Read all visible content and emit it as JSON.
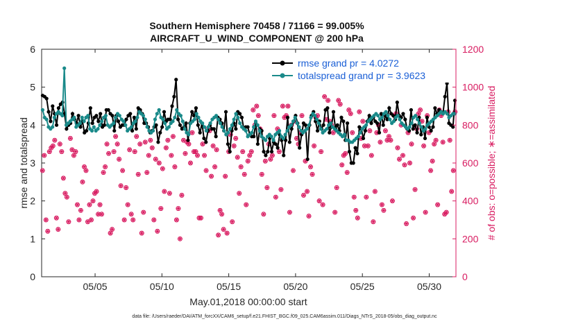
{
  "chart_data": {
    "type": "line",
    "title_line1": "Southern Hemisphere 70458 / 71166 = 99.005%",
    "title_line2": "AIRCRAFT_U_WIND_COMPONENT @ 200 hPa",
    "xlabel": "May.01,2018 00:00:00 start",
    "ylabel": "rmse and totalspread",
    "y2label": "# of obs: o=possible; ∗=assimilated",
    "footnote": "data file: /Users/raeder/DAI/ATM_forcXX/CAM6_setup/f.e21.FHIST_BGC.f09_025.CAM6assim.011/Diags_NTrS_2018-05/obs_diag_output.nc",
    "legend": [
      "rmse grand pr = 4.0272",
      "totalspread grand pr = 3.9623"
    ],
    "x_range": [
      1,
      32
    ],
    "ylim": [
      0,
      6
    ],
    "y2lim": [
      0,
      1200
    ],
    "yticks": [
      0,
      1,
      2,
      3,
      4,
      5,
      6
    ],
    "y2ticks": [
      0,
      200,
      400,
      600,
      800,
      1000,
      1200
    ],
    "xticks": [
      {
        "x": 5,
        "label": "05/05"
      },
      {
        "x": 10,
        "label": "05/10"
      },
      {
        "x": 15,
        "label": "05/15"
      },
      {
        "x": 20,
        "label": "05/20"
      },
      {
        "x": 25,
        "label": "05/25"
      },
      {
        "x": 30,
        "label": "05/30"
      }
    ],
    "series": [
      {
        "name": "rmse",
        "color": "#000000",
        "values": [
          4.78,
          4.75,
          4.7,
          4.35,
          4.1,
          4.5,
          4.3,
          4.0,
          4.45,
          4.55,
          4.6,
          4.3,
          3.9,
          4.0,
          4.05,
          4.3,
          4.15,
          4.05,
          4.25,
          3.95,
          4.1,
          3.8,
          3.85,
          4.05,
          4.45,
          4.05,
          4.2,
          4.25,
          4.1,
          4.3,
          3.95,
          4.0,
          4.4,
          4.4,
          4.3,
          4.25,
          3.85,
          4.25,
          4.1,
          3.95,
          4.0,
          4.0,
          4.15,
          4.25,
          4.3,
          3.85,
          4.2,
          3.9,
          4.45,
          4.4,
          4.3,
          4.05,
          4.05,
          3.95,
          3.8,
          3.85,
          3.95,
          4.0,
          3.55,
          3.8,
          3.95,
          4.35,
          4.1,
          4.15,
          4.15,
          4.5,
          4.75,
          5.2,
          4.15,
          4.0,
          3.9,
          3.95,
          4.05,
          3.6,
          4.05,
          4.35,
          4.25,
          4.45,
          4.0,
          3.8,
          4.05,
          3.65,
          3.55,
          3.85,
          4.0,
          3.9,
          3.9,
          3.7,
          4.2,
          4.15,
          4.05,
          3.85,
          4.35,
          3.5,
          3.3,
          3.85,
          4.05,
          3.9,
          4.35,
          4.3,
          4.2,
          3.9,
          3.95,
          3.95,
          3.75,
          3.7,
          3.7,
          4.05,
          3.5,
          3.9,
          3.85,
          3.3,
          3.2,
          3.3,
          3.65,
          3.3,
          3.55,
          3.5,
          3.4,
          3.75,
          3.6,
          3.2,
          3.6,
          4.2,
          3.55,
          3.9,
          4.1,
          4.25,
          4.05,
          3.4,
          3.75,
          4.05,
          4.0,
          3.1,
          4.0,
          4.25,
          4.35,
          4.1,
          3.85,
          4.1,
          3.9,
          4.0,
          4.4,
          4.45,
          3.8,
          3.95,
          4.35,
          3.9,
          4.0,
          3.85,
          4.2,
          4.1,
          3.6,
          4.05,
          3.3,
          3.0,
          3.0,
          3.4,
          3.25,
          3.95,
          3.9,
          3.65,
          3.85,
          4.1,
          4.25,
          4.05,
          4.2,
          4.1,
          4.05,
          3.8,
          4.3,
          4.0,
          4.25,
          4.15,
          4.45,
          4.3,
          4.25,
          4.15,
          4.6,
          4.25,
          4.2,
          4.3,
          4.15,
          3.9,
          3.85,
          4.4,
          3.9,
          4.0,
          3.8,
          4.2,
          3.75,
          3.95,
          3.65,
          4.2,
          3.95,
          3.85,
          3.95,
          4.45,
          4.3,
          4.4,
          4.35,
          4.3,
          4.75,
          5.1,
          4.05,
          4.0,
          3.95,
          4.65
        ]
      },
      {
        "name": "totalspread",
        "color": "#1a8a8a",
        "values": [
          4.4,
          4.2,
          4.15,
          3.95,
          3.9,
          3.95,
          4.2,
          4.3,
          4.35,
          4.3,
          4.25,
          5.5,
          4.0,
          4.05,
          4.1,
          4.15,
          4.2,
          3.95,
          4.0,
          4.05,
          4.2,
          4.1,
          4.2,
          4.25,
          3.9,
          3.85,
          3.95,
          3.85,
          3.9,
          4.0,
          4.1,
          4.2,
          4.25,
          4.0,
          3.95,
          4.0,
          4.05,
          4.2,
          4.3,
          4.25,
          4.15,
          4.1,
          4.0,
          3.85,
          3.9,
          3.95,
          4.05,
          4.1,
          4.2,
          4.35,
          4.3,
          4.25,
          4.15,
          3.95,
          3.85,
          3.8,
          3.85,
          4.15,
          4.3,
          4.4,
          4.2,
          4.15,
          4.05,
          3.9,
          3.95,
          4.05,
          4.1,
          4.2,
          4.4,
          4.3,
          4.25,
          4.1,
          3.9,
          3.8,
          3.75,
          4.05,
          4.1,
          4.15,
          4.3,
          4.2,
          4.1,
          4.05,
          3.95,
          3.85,
          3.95,
          4.05,
          4.15,
          4.2,
          4.25,
          4.15,
          4.05,
          3.95,
          3.85,
          3.75,
          3.8,
          3.9,
          4.0,
          4.15,
          4.3,
          4.2,
          4.05,
          3.95,
          3.9,
          3.85,
          3.7,
          3.75,
          3.8,
          3.95,
          4.1,
          4.0,
          3.85,
          3.7,
          3.65,
          3.6,
          3.7,
          3.75,
          3.7,
          3.6,
          3.75,
          3.8,
          3.85,
          3.7,
          3.65,
          3.75,
          3.85,
          3.95,
          4.0,
          4.1,
          4.2,
          4.05,
          3.95,
          3.85,
          3.8,
          3.85,
          3.9,
          4.0,
          4.2,
          4.3,
          4.25,
          4.15,
          4.05,
          3.9,
          3.8,
          3.85,
          3.9,
          4.0,
          4.05,
          3.95,
          3.9,
          3.85,
          3.8,
          3.75,
          3.7,
          3.75,
          3.6,
          3.6,
          3.55,
          3.55,
          3.6,
          3.65,
          3.7,
          3.8,
          3.9,
          3.95,
          4.0,
          4.1,
          4.15,
          4.2,
          4.25,
          4.3,
          4.25,
          4.15,
          4.2,
          4.3,
          4.35,
          4.25,
          4.15,
          4.05,
          4.1,
          4.2,
          4.25,
          4.15,
          4.05,
          4.0,
          3.95,
          3.9,
          3.95,
          4.05,
          4.2,
          4.25,
          4.15,
          4.05,
          3.95,
          3.85,
          3.9,
          4.0,
          4.05,
          4.1,
          4.15,
          4.2,
          4.25,
          4.3,
          4.35,
          4.3,
          4.35,
          4.3,
          4.2,
          4.25,
          4.3,
          4.3
        ]
      }
    ],
    "obs_possible": [
      560,
      640,
      300,
      240,
      660,
      680,
      690,
      720,
      310,
      250,
      700,
      660,
      520,
      440,
      420,
      290,
      730,
      670,
      640,
      660,
      380,
      300,
      350,
      500,
      580,
      560,
      290,
      380,
      300,
      400,
      440,
      450,
      330,
      380,
      330,
      550,
      580,
      700,
      650,
      230,
      250,
      660,
      740,
      700,
      620,
      480,
      560,
      300,
      470,
      380,
      670,
      330,
      300,
      660,
      740,
      540,
      700,
      230,
      340,
      710,
      550,
      640,
      720,
      680,
      300,
      620,
      240,
      600,
      360,
      570,
      450,
      680,
      720,
      440,
      640,
      740,
      580,
      300,
      360,
      200,
      430,
      720,
      650,
      710,
      700,
      600,
      760,
      660,
      660,
      640,
      310,
      310,
      700,
      640,
      560,
      780,
      770,
      530,
      690,
      580,
      670,
      220,
      350,
      330,
      250,
      530,
      230,
      660,
      750,
      290,
      690,
      730,
      630,
      440,
      580,
      660,
      540,
      380,
      610,
      640,
      660,
      880,
      800,
      900,
      850,
      780,
      540,
      330,
      610,
      470,
      700,
      620,
      640,
      850,
      420,
      780,
      660,
      460,
      900,
      840,
      850,
      900,
      340,
      800,
      560,
      820,
      730,
      700,
      760,
      850,
      430,
      610,
      450,
      320,
      580,
      540,
      690,
      840,
      850,
      400,
      660,
      380,
      950,
      830,
      930,
      820,
      800,
      760,
      340,
      470,
      930,
      910,
      590,
      640,
      650,
      550,
      880,
      860,
      760,
      420,
      350,
      310,
      870,
      730,
      820,
      690,
      420,
      690,
      770,
      640,
      290,
      450,
      760,
      800,
      710,
      380,
      350,
      770,
      720,
      740,
      720,
      400,
      850,
      860,
      680,
      620,
      800,
      640,
      590,
      280,
      760,
      600,
      700,
      310,
      460,
      780,
      860,
      880,
      820,
      690,
      340,
      850,
      760,
      560,
      610,
      700,
      720,
      380,
      880,
      850,
      710,
      330,
      340,
      870,
      720,
      450,
      560,
      870
    ],
    "obs_assimilated": [
      560,
      640,
      300,
      240,
      660,
      680,
      690,
      720,
      310,
      250,
      700,
      660,
      520,
      440,
      420,
      290,
      730,
      670,
      640,
      660,
      380,
      300,
      350,
      500,
      580,
      560,
      290,
      380,
      300,
      400,
      440,
      450,
      330,
      380,
      330,
      550,
      580,
      700,
      650,
      230,
      250,
      660,
      740,
      700,
      620,
      480,
      560,
      300,
      470,
      380,
      670,
      330,
      300,
      660,
      740,
      540,
      700,
      230,
      340,
      710,
      550,
      640,
      720,
      680,
      300,
      620,
      240,
      600,
      360,
      570,
      450,
      680,
      720,
      440,
      640,
      740,
      580,
      300,
      360,
      200,
      430,
      720,
      650,
      710,
      700,
      600,
      760,
      660,
      660,
      640,
      310,
      310,
      700,
      640,
      560,
      780,
      770,
      530,
      690,
      580,
      670,
      220,
      350,
      330,
      250,
      530,
      230,
      660,
      750,
      290,
      690,
      730,
      630,
      440,
      580,
      660,
      540,
      380,
      610,
      640,
      660,
      880,
      800,
      900,
      850,
      780,
      540,
      330,
      610,
      470,
      700,
      620,
      640,
      850,
      420,
      780,
      660,
      460,
      900,
      840,
      850,
      900,
      340,
      800,
      560,
      820,
      730,
      700,
      760,
      850,
      430,
      610,
      450,
      320,
      580,
      540,
      690,
      840,
      850,
      400,
      660,
      380,
      950,
      830,
      930,
      820,
      800,
      760,
      340,
      470,
      930,
      910,
      590,
      640,
      650,
      550,
      880,
      860,
      760,
      420,
      350,
      310,
      870,
      730,
      820,
      690,
      420,
      690,
      770,
      640,
      290,
      450,
      760,
      800,
      710,
      380,
      350,
      770,
      720,
      740,
      720,
      400,
      850,
      860,
      680,
      620,
      800,
      640,
      590,
      280,
      760,
      600,
      700,
      310,
      460,
      780,
      860,
      880,
      820,
      690,
      340,
      850,
      760,
      560,
      610,
      700,
      720,
      380,
      880,
      850,
      710,
      330,
      340,
      870,
      720,
      450,
      560,
      870
    ],
    "colors": {
      "rmse": "#000000",
      "spread": "#1a8a8a",
      "obs": "#d81b60"
    }
  }
}
